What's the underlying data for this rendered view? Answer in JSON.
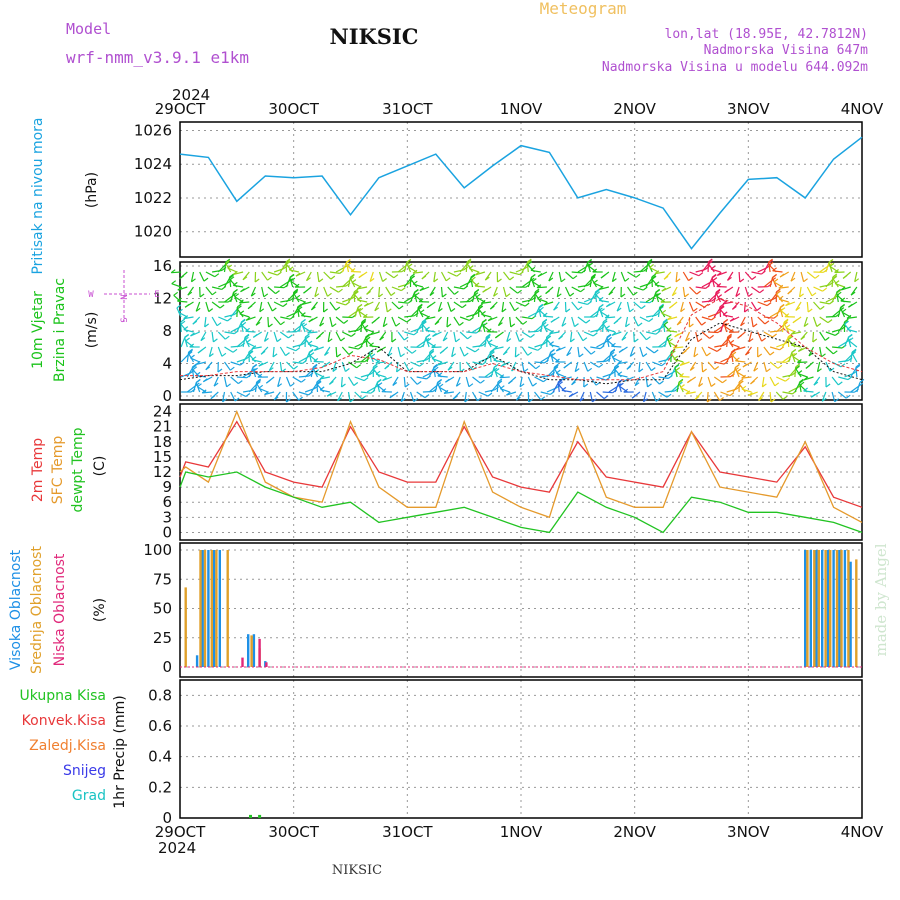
{
  "header": {
    "model_label": "Model",
    "model_name": "wrf-nmm_v3.9.1  e1km",
    "title": "NIKSIC",
    "meteogram": "Meteogram",
    "coords": "lon,lat (18.95E, 42.7812N)",
    "elev": "Nadmorska Visina 647m",
    "elev_model": "Nadmorska Visina u modelu 644.092m",
    "footer": "NIKSIC",
    "credit": "made by Angel"
  },
  "colors": {
    "pressure": "#1aa3e0",
    "t2m": "#e8383a",
    "sfc": "#e59a2c",
    "dewpt": "#22c322",
    "high_cloud": "#1e90e6",
    "mid_cloud": "#e0a02a",
    "low_cloud": "#e0287a",
    "wind_label": "#1ac31a",
    "axis_pink": "#c84fd2"
  },
  "time_axis": {
    "year_top": "2024",
    "year_bottom": "2024",
    "labels": [
      "29OCT",
      "30OCT",
      "31OCT",
      "1NOV",
      "2NOV",
      "3NOV",
      "4NOV"
    ]
  },
  "panels": {
    "pressure": {
      "label": "Pritisak na nivou mora",
      "unit": "(hPa)",
      "ticks": [
        "1026",
        "1024",
        "1022",
        "1020"
      ]
    },
    "wind": {
      "label1": "10m Vjetar",
      "label2": "Brzina i Pravac",
      "unit": "(m/s)",
      "ticks": [
        "16",
        "12",
        "8",
        "4",
        "0"
      ],
      "compass": {
        "n": "N",
        "s": "S",
        "e": "E",
        "w": "W"
      }
    },
    "temp": {
      "label1": "2m Temp",
      "label2": "SFC Temp",
      "label3": "dewpt Temp",
      "unit": "(C)",
      "ticks": [
        "24",
        "21",
        "18",
        "15",
        "12",
        "9",
        "6",
        "3",
        "0"
      ]
    },
    "cloud": {
      "label1": "Visoka Oblacnost",
      "label2": "Srednja Oblacnost",
      "label3": "Niska Oblacnost",
      "unit": "(%)",
      "ticks": [
        "100",
        "75",
        "50",
        "25",
        "0"
      ]
    },
    "precip": {
      "labels": [
        "Ukupna Kisa",
        "Konvek.Kisa",
        "Zaledj.Kisa",
        "Snijeg",
        "Grad"
      ],
      "unit": "1hr Precip (mm)",
      "ticks": [
        "0.8",
        "0.6",
        "0.4",
        "0.2",
        "0"
      ]
    }
  },
  "chart_data": [
    {
      "type": "line",
      "ylabel": "Pritisak na nivou mora (hPa)",
      "ylim": [
        1018.5,
        1026.5
      ],
      "x_days": [
        0,
        0.25,
        0.5,
        0.75,
        1,
        1.25,
        1.5,
        1.75,
        2,
        2.25,
        2.5,
        2.75,
        3,
        3.25,
        3.5,
        3.75,
        4,
        4.25,
        4.5,
        4.75,
        5,
        5.25,
        5.5,
        5.75,
        6
      ],
      "series": [
        {
          "values": [
            1024.6,
            1024.4,
            1021.8,
            1023.3,
            1023.2,
            1023.3,
            1021.0,
            1023.2,
            1023.9,
            1024.6,
            1022.6,
            1023.9,
            1025.1,
            1024.7,
            1022.0,
            1022.5,
            1022.0,
            1021.4,
            1019.0,
            1021.1,
            1023.1,
            1023.2,
            1022.0,
            1024.3,
            1025.6
          ]
        }
      ]
    },
    {
      "type": "line",
      "ylabel": "10m Vjetar Brzina i Pravac (m/s)",
      "ylim": [
        -0.5,
        16.5
      ],
      "x_days": [
        0,
        0.25,
        0.5,
        0.75,
        1,
        1.25,
        1.5,
        1.75,
        2,
        2.25,
        2.5,
        2.75,
        3,
        3.25,
        3.5,
        3.75,
        4,
        4.25,
        4.5,
        4.75,
        5,
        5.25,
        5.5,
        5.75,
        6
      ],
      "series": [
        {
          "values": [
            2,
            2.5,
            2.5,
            3,
            3,
            3,
            4,
            6,
            3,
            3,
            3,
            5,
            3,
            2,
            2,
            1.5,
            2,
            2,
            7,
            9,
            8,
            7,
            6,
            3,
            2
          ]
        },
        {
          "values": [
            2.5,
            2.5,
            3,
            3,
            3,
            3.5,
            5,
            4.5,
            3,
            3,
            3,
            4,
            3,
            2.5,
            2,
            2,
            2,
            3,
            10,
            12,
            11,
            9,
            6,
            4,
            3
          ]
        }
      ]
    },
    {
      "type": "line",
      "ylabel": "(C)",
      "ylim": [
        -1.5,
        25.5
      ],
      "x_days": [
        0,
        0.05,
        0.25,
        0.5,
        0.75,
        1,
        1.25,
        1.5,
        1.75,
        2,
        2.25,
        2.5,
        2.75,
        3,
        3.25,
        3.5,
        3.75,
        4,
        4.25,
        4.5,
        4.75,
        5,
        5.25,
        5.5,
        5.75,
        6
      ],
      "series": [
        {
          "name": "2m Temp",
          "values": [
            11,
            14,
            13,
            22,
            12,
            10,
            9,
            21,
            12,
            10,
            10,
            21,
            11,
            9,
            8,
            18,
            11,
            10,
            9,
            20,
            12,
            11,
            10,
            17,
            7,
            5
          ]
        },
        {
          "name": "SFC Temp",
          "values": [
            12,
            13,
            10,
            24,
            10,
            7,
            6,
            22,
            9,
            5,
            5,
            22,
            8,
            5,
            3,
            21,
            7,
            5,
            5,
            20,
            9,
            8,
            7,
            18,
            5,
            2
          ]
        },
        {
          "name": "dewpt Temp",
          "values": [
            9,
            12,
            11,
            12,
            9,
            7,
            5,
            6,
            2,
            3,
            4,
            5,
            3,
            1,
            0,
            8,
            5,
            3,
            0,
            7,
            6,
            4,
            4,
            3,
            2,
            0
          ]
        }
      ]
    },
    {
      "type": "bar",
      "ylabel": "(%)",
      "ylim": [
        0,
        100
      ],
      "series": [
        {
          "name": "Visoka Oblacnost",
          "x_days": [
            0.15,
            0.2,
            0.25,
            0.3,
            0.35,
            0.6,
            0.65,
            0.75,
            5.5,
            5.55,
            5.6,
            5.65,
            5.7,
            5.75,
            5.8,
            5.85,
            5.9
          ],
          "values": [
            10,
            100,
            100,
            100,
            100,
            28,
            28,
            5,
            100,
            100,
            100,
            100,
            100,
            100,
            100,
            100,
            90
          ]
        },
        {
          "name": "Srednja Oblacnost",
          "x_days": [
            0.05,
            0.18,
            0.22,
            0.28,
            0.32,
            0.42,
            0.63,
            0.7,
            5.52,
            5.58,
            5.62,
            5.68,
            5.72,
            5.78,
            5.82,
            5.88,
            5.95
          ],
          "values": [
            68,
            100,
            100,
            100,
            100,
            100,
            27,
            16,
            100,
            100,
            100,
            100,
            100,
            100,
            100,
            100,
            92
          ]
        },
        {
          "name": "Niska Oblacnost",
          "x_days": [
            0.55,
            0.7,
            0.76
          ],
          "values": [
            8,
            24,
            4
          ]
        }
      ]
    },
    {
      "type": "bar",
      "ylabel": "1hr Precip (mm)",
      "ylim": [
        0,
        0.9
      ],
      "series": [
        {
          "name": "Ukupna Kisa",
          "x_days": [
            0.62,
            0.7
          ],
          "values": [
            0.02,
            0.02
          ]
        },
        {
          "name": "Konvek.Kisa",
          "x_days": [],
          "values": []
        },
        {
          "name": "Zaledj.Kisa",
          "x_days": [],
          "values": []
        },
        {
          "name": "Snijeg",
          "x_days": [],
          "values": []
        },
        {
          "name": "Grad",
          "x_days": [],
          "values": []
        }
      ]
    }
  ]
}
